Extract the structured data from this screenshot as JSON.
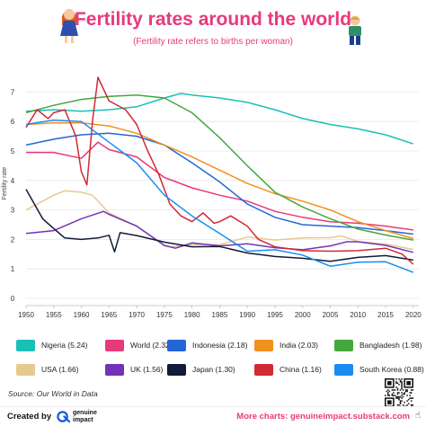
{
  "header": {
    "title": "Fertility rates around the world",
    "subtitle": "(Fertility rate refers to births per woman)"
  },
  "chart_data": {
    "type": "line",
    "title": "Fertility rates around the world",
    "subtitle": "(Fertility rate refers to births per woman)",
    "xlabel": "",
    "ylabel": "Fertility rate",
    "xlim": [
      1950,
      2021
    ],
    "ylim": [
      0,
      7.5
    ],
    "xticks": [
      1950,
      1955,
      1960,
      1965,
      1970,
      1975,
      1980,
      1985,
      1990,
      1995,
      2000,
      2005,
      2010,
      2015,
      2020
    ],
    "yticks": [
      0,
      1,
      2,
      3,
      4,
      5,
      6,
      7
    ],
    "grid": true,
    "legend_position": "bottom",
    "series": [
      {
        "name": "Nigeria",
        "value_label": "5.24",
        "color": "#1abfb8",
        "x": [
          1950,
          1955,
          1960,
          1965,
          1970,
          1975,
          1978,
          1980,
          1985,
          1990,
          1995,
          2000,
          2005,
          2010,
          2015,
          2020
        ],
        "y": [
          6.35,
          6.4,
          6.35,
          6.4,
          6.5,
          6.8,
          6.95,
          6.9,
          6.8,
          6.65,
          6.4,
          6.1,
          5.9,
          5.75,
          5.55,
          5.24
        ]
      },
      {
        "name": "World",
        "value_label": "2.32",
        "color": "#e8397b",
        "x": [
          1950,
          1955,
          1960,
          1963,
          1965,
          1970,
          1975,
          1980,
          1985,
          1990,
          1995,
          2000,
          2005,
          2010,
          2015,
          2020
        ],
        "y": [
          4.95,
          4.95,
          4.75,
          5.3,
          5.05,
          4.8,
          4.1,
          3.75,
          3.5,
          3.3,
          2.95,
          2.75,
          2.6,
          2.55,
          2.45,
          2.32
        ]
      },
      {
        "name": "Indonesia",
        "value_label": "2.18",
        "color": "#2466d8",
        "x": [
          1950,
          1955,
          1960,
          1965,
          1970,
          1975,
          1980,
          1985,
          1990,
          1995,
          2000,
          2005,
          2010,
          2015,
          2020
        ],
        "y": [
          5.2,
          5.4,
          5.55,
          5.6,
          5.5,
          5.2,
          4.6,
          3.95,
          3.2,
          2.75,
          2.5,
          2.45,
          2.4,
          2.3,
          2.18
        ]
      },
      {
        "name": "India",
        "value_label": "2.03",
        "color": "#f2901e",
        "x": [
          1950,
          1955,
          1960,
          1965,
          1970,
          1975,
          1980,
          1985,
          1990,
          1995,
          2000,
          2005,
          2010,
          2015,
          2020
        ],
        "y": [
          5.9,
          5.95,
          5.95,
          5.85,
          5.6,
          5.2,
          4.8,
          4.35,
          3.9,
          3.55,
          3.3,
          3.0,
          2.6,
          2.3,
          2.03
        ]
      },
      {
        "name": "Bangladesh",
        "value_label": "1.98",
        "color": "#44a83c",
        "x": [
          1950,
          1955,
          1960,
          1965,
          1970,
          1975,
          1980,
          1985,
          1990,
          1995,
          2000,
          2005,
          2010,
          2015,
          2020
        ],
        "y": [
          6.3,
          6.55,
          6.75,
          6.85,
          6.9,
          6.8,
          6.3,
          5.45,
          4.5,
          3.6,
          3.1,
          2.7,
          2.35,
          2.15,
          1.98
        ]
      },
      {
        "name": "USA",
        "value_label": "1.66",
        "color": "#e6c98f",
        "x": [
          1950,
          1955,
          1957,
          1960,
          1962,
          1965,
          1970,
          1975,
          1976,
          1980,
          1985,
          1990,
          1995,
          2000,
          2005,
          2007,
          2010,
          2015,
          2020
        ],
        "y": [
          3.0,
          3.5,
          3.65,
          3.6,
          3.5,
          2.9,
          2.45,
          1.78,
          1.74,
          1.82,
          1.82,
          2.08,
          1.98,
          2.05,
          2.06,
          2.12,
          1.93,
          1.84,
          1.66
        ]
      },
      {
        "name": "UK",
        "value_label": "1.56",
        "color": "#7333b8",
        "x": [
          1950,
          1955,
          1960,
          1964,
          1965,
          1970,
          1975,
          1977,
          1980,
          1985,
          1990,
          1995,
          2000,
          2005,
          2008,
          2010,
          2015,
          2020
        ],
        "y": [
          2.2,
          2.3,
          2.7,
          2.95,
          2.85,
          2.45,
          1.8,
          1.7,
          1.88,
          1.78,
          1.85,
          1.72,
          1.65,
          1.78,
          1.92,
          1.92,
          1.8,
          1.56
        ]
      },
      {
        "name": "Japan",
        "value_label": "1.30",
        "color": "#111b3a",
        "x": [
          1950,
          1953,
          1955,
          1957,
          1960,
          1963,
          1965,
          1966,
          1967,
          1970,
          1975,
          1980,
          1985,
          1990,
          1995,
          2000,
          2005,
          2010,
          2015,
          2020
        ],
        "y": [
          3.7,
          2.7,
          2.37,
          2.05,
          2.0,
          2.05,
          2.14,
          1.58,
          2.23,
          2.13,
          1.91,
          1.75,
          1.76,
          1.54,
          1.42,
          1.36,
          1.26,
          1.39,
          1.45,
          1.3
        ]
      },
      {
        "name": "China",
        "value_label": "1.16",
        "color": "#d02a34",
        "x": [
          1950,
          1951,
          1952,
          1954,
          1955,
          1957,
          1959,
          1960,
          1961,
          1962,
          1963,
          1965,
          1966,
          1968,
          1970,
          1972,
          1974,
          1976,
          1978,
          1980,
          1982,
          1984,
          1985,
          1987,
          1990,
          1992,
          1995,
          2000,
          2005,
          2010,
          2015,
          2018,
          2020
        ],
        "y": [
          5.8,
          6.1,
          6.4,
          6.1,
          6.3,
          6.4,
          5.5,
          4.3,
          3.85,
          6.0,
          7.5,
          6.7,
          6.6,
          6.4,
          5.9,
          5.0,
          4.2,
          3.2,
          2.8,
          2.6,
          2.9,
          2.55,
          2.6,
          2.8,
          2.45,
          2.0,
          1.75,
          1.62,
          1.6,
          1.62,
          1.7,
          1.5,
          1.16
        ]
      },
      {
        "name": "South Korea",
        "value_label": "0.88",
        "color": "#1a8cf0",
        "x": [
          1950,
          1955,
          1960,
          1965,
          1970,
          1975,
          1980,
          1985,
          1990,
          1995,
          2000,
          2005,
          2010,
          2015,
          2020
        ],
        "y": [
          5.9,
          6.05,
          6.0,
          5.3,
          4.6,
          3.5,
          2.8,
          2.2,
          1.6,
          1.65,
          1.47,
          1.09,
          1.23,
          1.24,
          0.88
        ]
      }
    ]
  },
  "legend": {
    "items": [
      {
        "label": "Nigeria (5.24)",
        "color": "#1abfb8"
      },
      {
        "label": "World (2.32)",
        "color": "#e8397b"
      },
      {
        "label": "Indonesia (2.18)",
        "color": "#2466d8"
      },
      {
        "label": "India (2.03)",
        "color": "#f2901e"
      },
      {
        "label": "Bangladesh (1.98)",
        "color": "#44a83c"
      },
      {
        "label": "USA (1.66)",
        "color": "#e6c98f"
      },
      {
        "label": "UK (1.56)",
        "color": "#7333b8"
      },
      {
        "label": "Japan (1.30)",
        "color": "#111b3a"
      },
      {
        "label": "China (1.16)",
        "color": "#d02a34"
      },
      {
        "label": "South Korea (0.88)",
        "color": "#1a8cf0"
      }
    ]
  },
  "source": "Source: Our World in Data",
  "footer": {
    "created_by": "Created by",
    "brand_line1": "genuine",
    "brand_line2": "impact",
    "more_charts": "More charts: genuineimpact.substack.com"
  },
  "icons": {
    "left_figure": "girl-figure-icon",
    "right_figure": "boy-figure-icon",
    "brand": "genuine-impact-logo",
    "qr": "qr-code",
    "hand": "pointing-hand-icon"
  },
  "colors": {
    "accent": "#e8397b"
  }
}
